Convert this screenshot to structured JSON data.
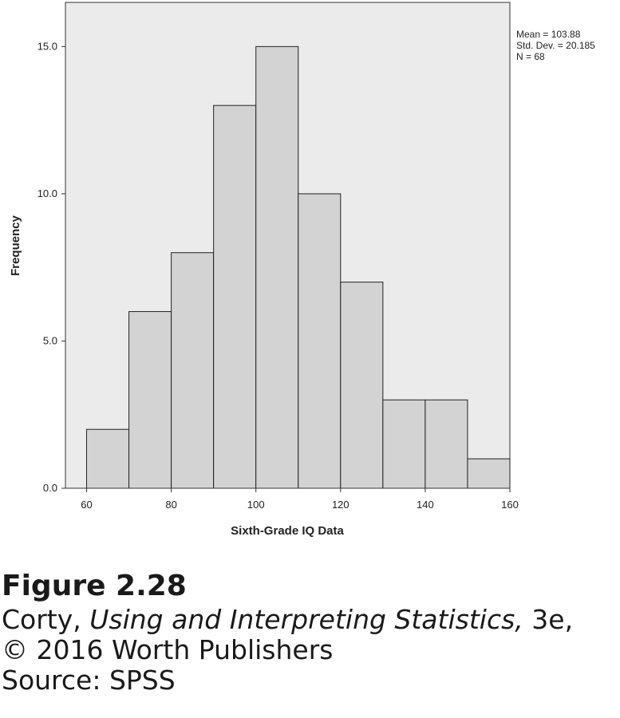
{
  "chart_data": {
    "type": "bar",
    "categories": [
      "60-70",
      "70-80",
      "80-90",
      "90-100",
      "100-110",
      "110-120",
      "120-130",
      "130-140",
      "140-150",
      "150-160"
    ],
    "bins": [
      [
        60,
        70
      ],
      [
        70,
        80
      ],
      [
        80,
        90
      ],
      [
        90,
        100
      ],
      [
        100,
        110
      ],
      [
        110,
        120
      ],
      [
        120,
        130
      ],
      [
        130,
        140
      ],
      [
        140,
        150
      ],
      [
        150,
        160
      ]
    ],
    "values": [
      2,
      6,
      8,
      13,
      15,
      10,
      7,
      3,
      3,
      1
    ],
    "xlabel": "Sixth-Grade IQ Data",
    "ylabel": "Frequency",
    "xlim": [
      55,
      160
    ],
    "ylim": [
      0,
      16.5
    ],
    "xticks": [
      "60",
      "80",
      "100",
      "120",
      "140",
      "160"
    ],
    "yticks": [
      "0.0",
      "5.0",
      "10.0",
      "15.0"
    ],
    "grid": false,
    "colors": {
      "plot_background": "#ebebeb",
      "bar_fill": "#d3d3d3",
      "bar_stroke": "#222222"
    },
    "annotations": [
      "Mean = 103.88",
      "Std. Dev. = 20.185",
      "N = 68"
    ]
  },
  "caption": {
    "title": "Figure 2.28",
    "line1_prefix": "Corty, ",
    "line1_italic": "Using and Interpreting Statistics,",
    "line1_suffix": " 3e,",
    "line2": "© 2016 Worth Publishers",
    "line3": "Source: SPSS"
  }
}
